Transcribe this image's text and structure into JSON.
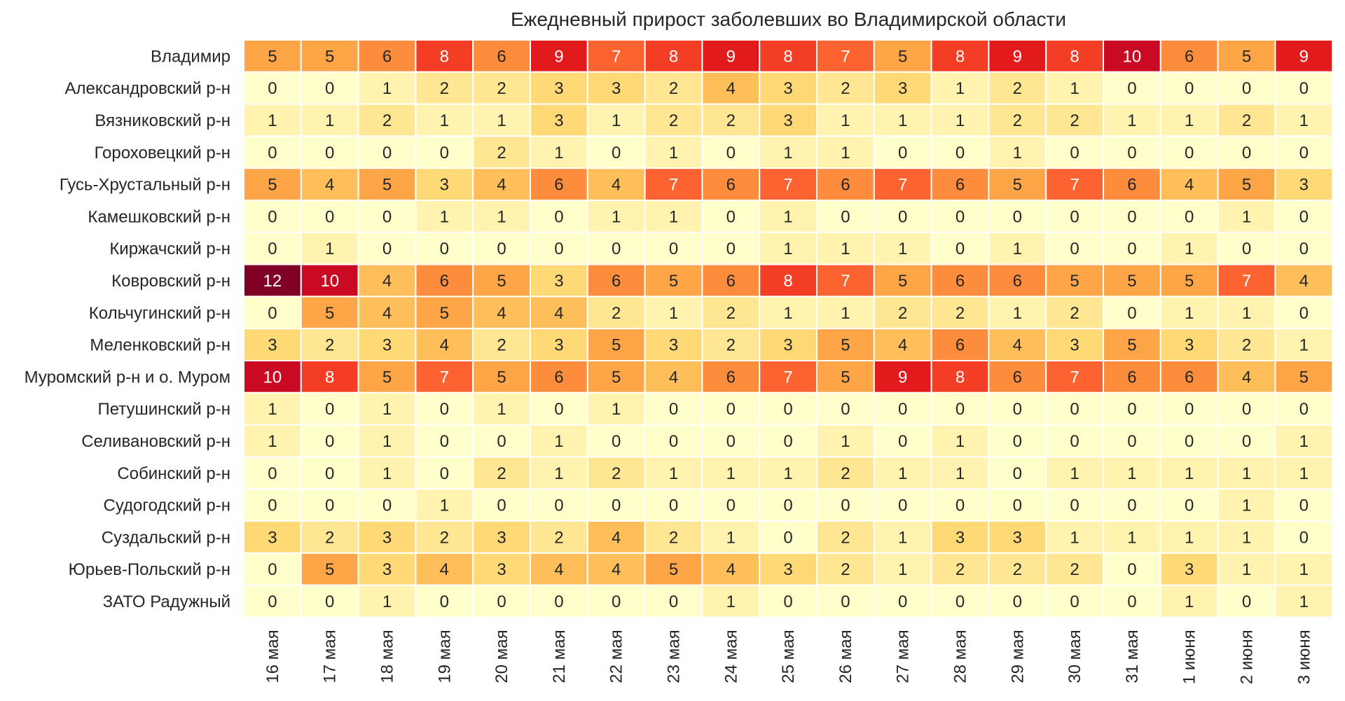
{
  "chart_data": {
    "type": "heatmap",
    "title": "Ежедневный прирост заболевших во Владимирской области",
    "xlabel": "",
    "ylabel": "",
    "columns": [
      "16 мая",
      "17 мая",
      "18 мая",
      "19 мая",
      "20 мая",
      "21 мая",
      "22 мая",
      "23 мая",
      "24 мая",
      "25 мая",
      "26 мая",
      "27 мая",
      "28 мая",
      "29 мая",
      "30 мая",
      "31 мая",
      "1 июня",
      "2 июня",
      "3 июня"
    ],
    "rows": [
      "Владимир",
      "Александровский р-н",
      "Вязниковский р-н",
      "Гороховецкий р-н",
      "Гусь-Хрустальный р-н",
      "Камешковский р-н",
      "Киржачский р-н",
      "Ковровский р-н",
      "Кольчугинский р-н",
      "Меленковский р-н",
      "Муромский р-н и о. Муром",
      "Петушинский р-н",
      "Селивановский р-н",
      "Собинский р-н",
      "Судогодский р-н",
      "Суздальский р-н",
      "Юрьев-Польский р-н",
      "ЗАТО Радужный"
    ],
    "values": [
      [
        5,
        5,
        6,
        8,
        6,
        9,
        7,
        8,
        9,
        8,
        7,
        5,
        8,
        9,
        8,
        10,
        6,
        5,
        9
      ],
      [
        0,
        0,
        1,
        2,
        2,
        3,
        3,
        2,
        4,
        3,
        2,
        3,
        1,
        2,
        1,
        0,
        0,
        0,
        0
      ],
      [
        1,
        1,
        2,
        1,
        1,
        3,
        1,
        2,
        2,
        3,
        1,
        1,
        1,
        2,
        2,
        1,
        1,
        2,
        1
      ],
      [
        0,
        0,
        0,
        0,
        2,
        1,
        0,
        1,
        0,
        1,
        1,
        0,
        0,
        1,
        0,
        0,
        0,
        0,
        0
      ],
      [
        5,
        4,
        5,
        3,
        4,
        6,
        4,
        7,
        6,
        7,
        6,
        7,
        6,
        5,
        7,
        6,
        4,
        5,
        3
      ],
      [
        0,
        0,
        0,
        1,
        1,
        0,
        1,
        1,
        0,
        1,
        0,
        0,
        0,
        0,
        0,
        0,
        0,
        1,
        0
      ],
      [
        0,
        1,
        0,
        0,
        0,
        0,
        0,
        0,
        0,
        1,
        1,
        1,
        0,
        1,
        0,
        0,
        1,
        0,
        0
      ],
      [
        12,
        10,
        4,
        6,
        5,
        3,
        6,
        5,
        6,
        8,
        7,
        5,
        6,
        6,
        5,
        5,
        5,
        7,
        4
      ],
      [
        0,
        5,
        4,
        5,
        4,
        4,
        2,
        1,
        2,
        1,
        1,
        2,
        2,
        1,
        2,
        0,
        1,
        1,
        0
      ],
      [
        3,
        2,
        3,
        4,
        2,
        3,
        5,
        3,
        2,
        3,
        5,
        4,
        6,
        4,
        3,
        5,
        3,
        2,
        1
      ],
      [
        10,
        8,
        5,
        7,
        5,
        6,
        5,
        4,
        6,
        7,
        5,
        9,
        8,
        6,
        7,
        6,
        6,
        4,
        5
      ],
      [
        1,
        0,
        1,
        0,
        1,
        0,
        1,
        0,
        0,
        0,
        0,
        0,
        0,
        0,
        0,
        0,
        0,
        0,
        0
      ],
      [
        1,
        0,
        1,
        0,
        0,
        1,
        0,
        0,
        0,
        0,
        1,
        0,
        1,
        0,
        0,
        0,
        0,
        0,
        1
      ],
      [
        0,
        0,
        1,
        0,
        2,
        1,
        2,
        1,
        1,
        1,
        2,
        1,
        1,
        0,
        1,
        1,
        1,
        1,
        1
      ],
      [
        0,
        0,
        0,
        1,
        0,
        0,
        0,
        0,
        0,
        0,
        0,
        0,
        0,
        0,
        0,
        0,
        0,
        1,
        0
      ],
      [
        3,
        2,
        3,
        2,
        3,
        2,
        4,
        2,
        1,
        0,
        2,
        1,
        3,
        3,
        1,
        1,
        1,
        1,
        0
      ],
      [
        0,
        5,
        3,
        4,
        3,
        4,
        4,
        5,
        4,
        3,
        2,
        1,
        2,
        2,
        2,
        0,
        3,
        1,
        1
      ],
      [
        0,
        0,
        1,
        0,
        0,
        0,
        0,
        0,
        1,
        0,
        0,
        0,
        0,
        0,
        0,
        0,
        1,
        0,
        1
      ]
    ],
    "vmin": 0,
    "vmax": 12,
    "colormap": "YlOrRd",
    "annotated": true
  }
}
